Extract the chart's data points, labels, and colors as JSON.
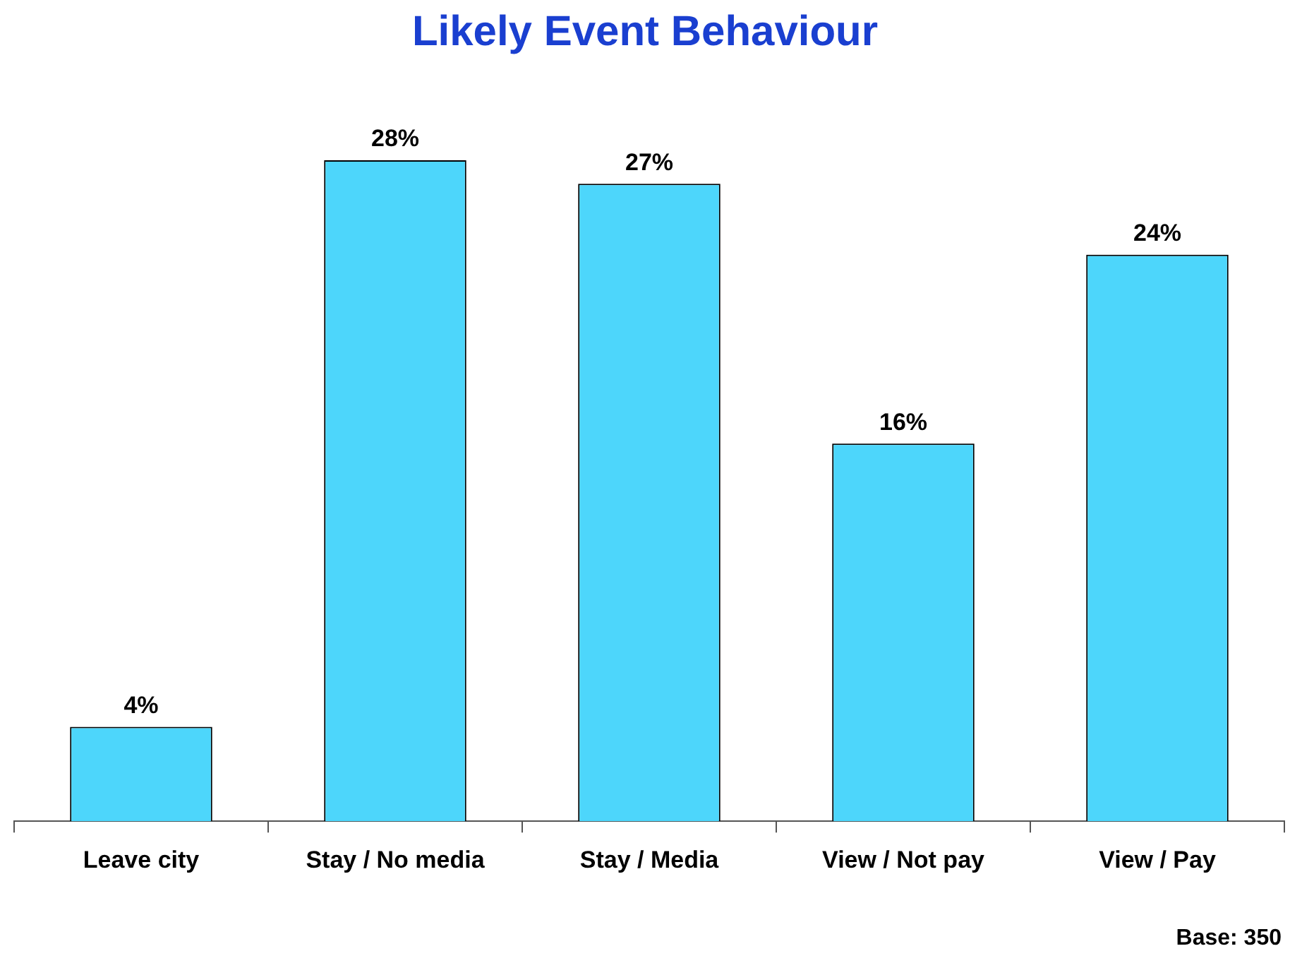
{
  "chart_data": {
    "type": "bar",
    "title": "Likely Event Behaviour",
    "categories": [
      "Leave city",
      "Stay / No media",
      "Stay / Media",
      "View / Not pay",
      "View / Pay"
    ],
    "values": [
      4,
      28,
      27,
      16,
      24
    ],
    "value_labels": [
      "4%",
      "28%",
      "27%",
      "16%",
      "24%"
    ],
    "color": "#4dd6fb",
    "grid": false,
    "legend": false,
    "annotations": [
      "Base: 350"
    ]
  }
}
